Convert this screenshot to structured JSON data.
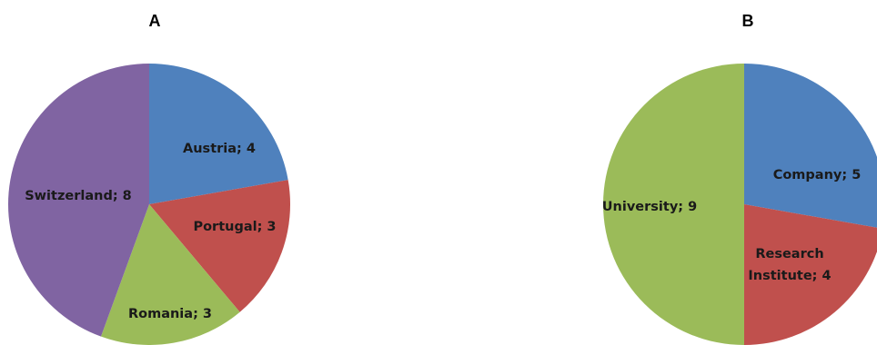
{
  "chart_data": [
    {
      "type": "pie",
      "title": "A",
      "slices": [
        {
          "label": "Austria; 4",
          "category": "Austria",
          "value": 4,
          "color": "#4F81BD"
        },
        {
          "label": "Portugal; 3",
          "category": "Portugal",
          "value": 3,
          "color": "#C0504D"
        },
        {
          "label": "Romania; 3",
          "category": "Romania",
          "value": 3,
          "color": "#9BBB59"
        },
        {
          "label": "Switzerland; 8",
          "category": "Switzerland",
          "value": 8,
          "color": "#8064A2"
        }
      ],
      "legend": "none"
    },
    {
      "type": "pie",
      "title": "B",
      "slices": [
        {
          "label": "Company; 5",
          "category": "Company",
          "value": 5,
          "color": "#4F81BD"
        },
        {
          "label": "Research Institute; 4",
          "category": "Research Institute",
          "value": 4,
          "color": "#C0504D"
        },
        {
          "label": "University; 9",
          "category": "University",
          "value": 9,
          "color": "#9BBB59"
        }
      ],
      "legend": "none"
    }
  ]
}
